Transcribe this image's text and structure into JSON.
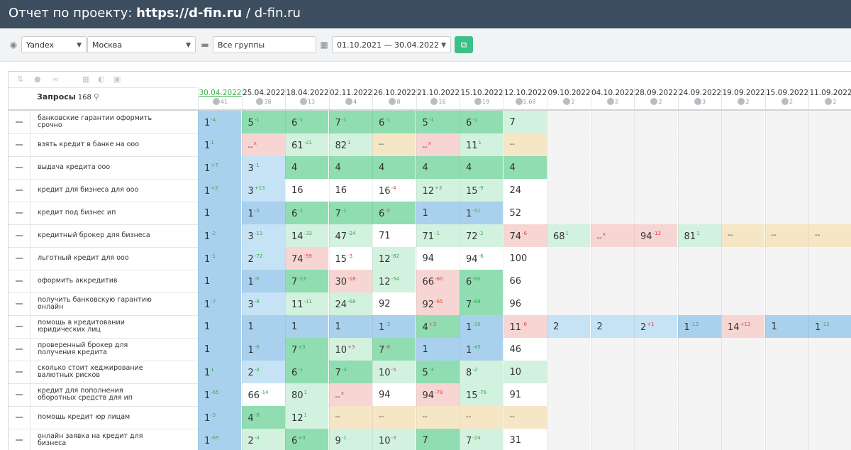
{
  "header": {
    "prefix": "Отчет по проекту: ",
    "domain_bold": "https://d-fin.ru",
    "separator": " / ",
    "domain": "d-fin.ru"
  },
  "toolbar": {
    "engine": "Yandex",
    "region": "Москва",
    "group": "Все группы",
    "period": "01.10.2021 — 30.04.2022",
    "icons": {
      "globe": "globe-icon",
      "folder": "folder-icon",
      "calendar": "calendar-icon",
      "export": "export-icon"
    }
  },
  "table": {
    "queries_label": "Запросы",
    "queries_count": "168",
    "search_icon": "⚲",
    "dates": [
      {
        "date": "30.04.2022",
        "count": "41",
        "active": true
      },
      {
        "date": "25.04.2022",
        "count": "38"
      },
      {
        "date": "18.04.2022",
        "count": "13"
      },
      {
        "date": "02.11.2022",
        "count": "4"
      },
      {
        "date": "26.10.2022",
        "count": "8"
      },
      {
        "date": "21.10.2022",
        "count": "16"
      },
      {
        "date": "15.10.2022",
        "count": "19"
      },
      {
        "date": "12.10.2022",
        "count": "5.68"
      },
      {
        "date": "09.10.2022",
        "count": "2"
      },
      {
        "date": "04.10.2022",
        "count": "2"
      },
      {
        "date": "28.09.2022",
        "count": "2"
      },
      {
        "date": "24.09.2022",
        "count": "3"
      },
      {
        "date": "19.09.2022",
        "count": "2"
      },
      {
        "date": "15.09.2022",
        "count": "2"
      },
      {
        "date": "11.09.2022",
        "count": "2"
      }
    ],
    "rows": [
      {
        "q": "банковские гарантии оформить срочно",
        "cells": [
          [
            "1",
            "-4",
            "up",
            "blue"
          ],
          [
            "5",
            "-1",
            "up",
            "green"
          ],
          [
            "6",
            "-1",
            "up",
            "green"
          ],
          [
            "7",
            "-1",
            "up",
            "green"
          ],
          [
            "6",
            "-1",
            "up",
            "green"
          ],
          [
            "5",
            "-1",
            "up",
            "green"
          ],
          [
            "6",
            "-1",
            "up",
            "green"
          ],
          [
            "7",
            "",
            "",
            "lgreen"
          ]
        ]
      },
      {
        "q": "взять кредит в банке на ооо",
        "cells": [
          [
            "1",
            "1",
            "up",
            "blue"
          ],
          [
            "--",
            "x",
            "dn",
            "red"
          ],
          [
            "61",
            "-21",
            "up",
            "lgreen"
          ],
          [
            "82",
            "1",
            "up",
            "lgreen"
          ],
          [
            "--",
            "",
            "",
            "yellow"
          ],
          [
            "--",
            "x",
            "dn",
            "red"
          ],
          [
            "11",
            "1",
            "up",
            "lgreen"
          ],
          [
            "--",
            "",
            "",
            "yellow"
          ]
        ]
      },
      {
        "q": "выдача кредита ооо",
        "cells": [
          [
            "1",
            "+7",
            "up",
            "blue"
          ],
          [
            "3",
            "-1",
            "up",
            "lblue"
          ],
          [
            "4",
            "",
            "",
            "green"
          ],
          [
            "4",
            "",
            "",
            "green"
          ],
          [
            "4",
            "",
            "",
            "green"
          ],
          [
            "4",
            "",
            "",
            "green"
          ],
          [
            "4",
            "",
            "",
            "green"
          ],
          [
            "4",
            "",
            "",
            "green"
          ]
        ]
      },
      {
        "q": "кредит для бизнеса для ооо",
        "cells": [
          [
            "1",
            "+2",
            "up",
            "blue"
          ],
          [
            "3",
            "+13",
            "up",
            "lblue"
          ],
          [
            "16",
            "",
            "",
            "white"
          ],
          [
            "16",
            "",
            "",
            "white"
          ],
          [
            "16",
            "-4",
            "dn",
            "white"
          ],
          [
            "12",
            "+3",
            "up",
            "lgreen"
          ],
          [
            "15",
            "-9",
            "up",
            "lgreen"
          ],
          [
            "24",
            "",
            "",
            "white"
          ]
        ]
      },
      {
        "q": "кредит под бизнес ип",
        "cells": [
          [
            "1",
            "",
            "",
            "blue"
          ],
          [
            "1",
            "-5",
            "up",
            "blue"
          ],
          [
            "6",
            "-1",
            "up",
            "green"
          ],
          [
            "7",
            "-1",
            "up",
            "green"
          ],
          [
            "6",
            "-5",
            "dn",
            "green"
          ],
          [
            "1",
            "",
            "",
            "blue"
          ],
          [
            "1",
            "-51",
            "up",
            "blue"
          ],
          [
            "52",
            "",
            "",
            "white"
          ]
        ]
      },
      {
        "q": "кредитный брокер для бизнеса",
        "cells": [
          [
            "1",
            "-2",
            "up",
            "blue"
          ],
          [
            "3",
            "-11",
            "up",
            "lblue"
          ],
          [
            "14",
            "-33",
            "up",
            "lgreen"
          ],
          [
            "47",
            "-24",
            "up",
            "lgreen"
          ],
          [
            "71",
            "",
            "",
            "white"
          ],
          [
            "71",
            "-1",
            "up",
            "lgreen"
          ],
          [
            "72",
            "-2",
            "up",
            "lgreen"
          ],
          [
            "74",
            "-6",
            "dn",
            "red"
          ],
          [
            "68",
            "1",
            "up",
            "lgreen"
          ],
          [
            "--",
            "x",
            "dn",
            "red"
          ],
          [
            "94",
            "-13",
            "dn",
            "red"
          ],
          [
            "81",
            "1",
            "up",
            "lgreen"
          ],
          [
            "--",
            "",
            "",
            "yellow"
          ],
          [
            "--",
            "",
            "",
            "yellow"
          ],
          [
            "--",
            "",
            "",
            "yellow"
          ]
        ]
      },
      {
        "q": "льготный кредит для ооо",
        "cells": [
          [
            "1",
            "-1",
            "up",
            "blue"
          ],
          [
            "2",
            "-72",
            "up",
            "lblue"
          ],
          [
            "74",
            "-59",
            "dn",
            "red"
          ],
          [
            "15",
            "-3",
            "dn",
            "white"
          ],
          [
            "12",
            "-82",
            "up",
            "lgreen"
          ],
          [
            "94",
            "",
            "",
            "white"
          ],
          [
            "94",
            "-6",
            "up",
            "white"
          ],
          [
            "100",
            "",
            "",
            "white"
          ]
        ]
      },
      {
        "q": "оформить аккредитив",
        "cells": [
          [
            "1",
            "",
            "",
            "blue"
          ],
          [
            "1",
            "-6",
            "up",
            "blue"
          ],
          [
            "7",
            "-23",
            "up",
            "green"
          ],
          [
            "30",
            "-18",
            "dn",
            "red"
          ],
          [
            "12",
            "-54",
            "up",
            "lgreen"
          ],
          [
            "66",
            "-60",
            "dn",
            "red"
          ],
          [
            "6",
            "-60",
            "up",
            "green"
          ],
          [
            "66",
            "",
            "",
            "white"
          ]
        ]
      },
      {
        "q": "получить банковскую гарантию онлайн",
        "cells": [
          [
            "1",
            "-7",
            "up",
            "blue"
          ],
          [
            "3",
            "-8",
            "up",
            "lblue"
          ],
          [
            "11",
            "-11",
            "up",
            "lgreen"
          ],
          [
            "24",
            "-68",
            "up",
            "lgreen"
          ],
          [
            "92",
            "",
            "",
            "white"
          ],
          [
            "92",
            "-65",
            "dn",
            "red"
          ],
          [
            "7",
            "-89",
            "up",
            "green"
          ],
          [
            "96",
            "",
            "",
            "white"
          ]
        ]
      },
      {
        "q": "помощь в кредитовании юридических лиц",
        "cells": [
          [
            "1",
            "",
            "",
            "blue"
          ],
          [
            "1",
            "",
            "",
            "blue"
          ],
          [
            "1",
            "",
            "",
            "blue"
          ],
          [
            "1",
            "",
            "",
            "blue"
          ],
          [
            "1",
            "-3",
            "up",
            "blue"
          ],
          [
            "4",
            "+3",
            "dn",
            "green"
          ],
          [
            "1",
            "-10",
            "up",
            "blue"
          ],
          [
            "11",
            "-6",
            "dn",
            "red"
          ],
          [
            "2",
            "",
            "",
            "lblue"
          ],
          [
            "2",
            "",
            "",
            "lblue"
          ],
          [
            "2",
            "+1",
            "dn",
            "lblue"
          ],
          [
            "1",
            "-13",
            "up",
            "blue"
          ],
          [
            "14",
            "+13",
            "dn",
            "red"
          ],
          [
            "1",
            "",
            "",
            "blue"
          ],
          [
            "1",
            "-12",
            "up",
            "blue"
          ]
        ]
      },
      {
        "q": "проверенный брокер для получения кредита",
        "cells": [
          [
            "1",
            "",
            "",
            "blue"
          ],
          [
            "1",
            "-6",
            "up",
            "blue"
          ],
          [
            "7",
            "+3",
            "up",
            "green"
          ],
          [
            "10",
            "+3",
            "dn",
            "lgreen"
          ],
          [
            "7",
            "-6",
            "dn",
            "green"
          ],
          [
            "1",
            "",
            "",
            "blue"
          ],
          [
            "1",
            "-45",
            "up",
            "blue"
          ],
          [
            "46",
            "",
            "",
            "white"
          ]
        ]
      },
      {
        "q": "сколько стоит хеджирование валютных рисков",
        "cells": [
          [
            "1",
            "1",
            "up",
            "blue"
          ],
          [
            "2",
            "-4",
            "up",
            "lblue"
          ],
          [
            "6",
            "-1",
            "up",
            "green"
          ],
          [
            "7",
            "-3",
            "up",
            "green"
          ],
          [
            "10",
            "-5",
            "dn",
            "lgreen"
          ],
          [
            "5",
            "-3",
            "up",
            "green"
          ],
          [
            "8",
            "-2",
            "up",
            "lgreen"
          ],
          [
            "10",
            "",
            "",
            "lgreen"
          ]
        ]
      },
      {
        "q": "кредит для пополнения оборотных средств для ип",
        "cells": [
          [
            "1",
            "-65",
            "up",
            "blue"
          ],
          [
            "66",
            "-14",
            "up",
            "white"
          ],
          [
            "80",
            "1",
            "up",
            "lgreen"
          ],
          [
            "--",
            "x",
            "dn",
            "red"
          ],
          [
            "94",
            "",
            "",
            "white"
          ],
          [
            "94",
            "-79",
            "dn",
            "red"
          ],
          [
            "15",
            "-76",
            "up",
            "lgreen"
          ],
          [
            "91",
            "",
            "",
            "white"
          ]
        ]
      },
      {
        "q": "помощь кредит юр лицам",
        "cells": [
          [
            "1",
            "-3",
            "up",
            "blue"
          ],
          [
            "4",
            "-8",
            "up",
            "green"
          ],
          [
            "12",
            "1",
            "up",
            "lgreen"
          ],
          [
            "--",
            "",
            "",
            "yellow"
          ],
          [
            "--",
            "",
            "",
            "yellow"
          ],
          [
            "--",
            "",
            "",
            "yellow"
          ],
          [
            "--",
            "",
            "",
            "yellow"
          ],
          [
            "--",
            "",
            "",
            "yellow"
          ]
        ]
      },
      {
        "q": "онлайн заявка на кредит для бизнеса",
        "cells": [
          [
            "1",
            "-65",
            "up",
            "blue"
          ],
          [
            "2",
            "-4",
            "up",
            "lgreen"
          ],
          [
            "6",
            "+3",
            "up",
            "green"
          ],
          [
            "9",
            "-1",
            "up",
            "lgreen"
          ],
          [
            "10",
            "-3",
            "dn",
            "lgreen"
          ],
          [
            "7",
            "",
            "",
            "green"
          ],
          [
            "7",
            "-24",
            "up",
            "lgreen"
          ],
          [
            "31",
            "",
            "",
            "white"
          ]
        ]
      }
    ]
  }
}
